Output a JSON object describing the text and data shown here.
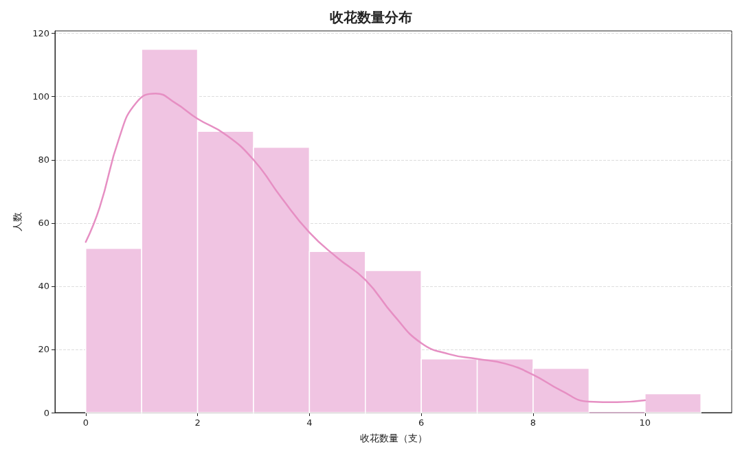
{
  "chart_data": {
    "type": "histogram",
    "title": "收花数量分布",
    "xlabel": "收花数量（支）",
    "ylabel": "人数",
    "xlim": [
      -0.55,
      11.55
    ],
    "xticks": [
      0,
      2,
      4,
      6,
      8,
      10
    ],
    "ylim": [
      0,
      120.8
    ],
    "yticks": [
      0,
      20,
      40,
      60,
      80,
      100,
      120
    ],
    "grid": "y",
    "series": [
      {
        "color": "#f0c4e2",
        "bins": [
          0,
          1,
          2,
          3,
          4,
          5,
          6,
          7,
          8,
          9,
          10,
          11
        ],
        "values": [
          52,
          115,
          89,
          84,
          51,
          45,
          17,
          17,
          14,
          0,
          6
        ]
      },
      {
        "type": "line",
        "color": "#e68fc3",
        "x": [
          0,
          0.25,
          0.6,
          0.9,
          1.25,
          1.6,
          2,
          2.5,
          3,
          3.5,
          4,
          4.5,
          5,
          5.5,
          6,
          6.5,
          7,
          7.5,
          8,
          8.5,
          9,
          9.5,
          10
        ],
        "values": [
          54,
          65,
          87,
          98,
          101,
          98,
          93,
          88,
          80,
          68,
          57,
          49,
          42,
          31,
          22,
          18.5,
          17,
          15.5,
          12,
          7,
          3.5,
          3.3,
          3.9
        ]
      }
    ]
  }
}
